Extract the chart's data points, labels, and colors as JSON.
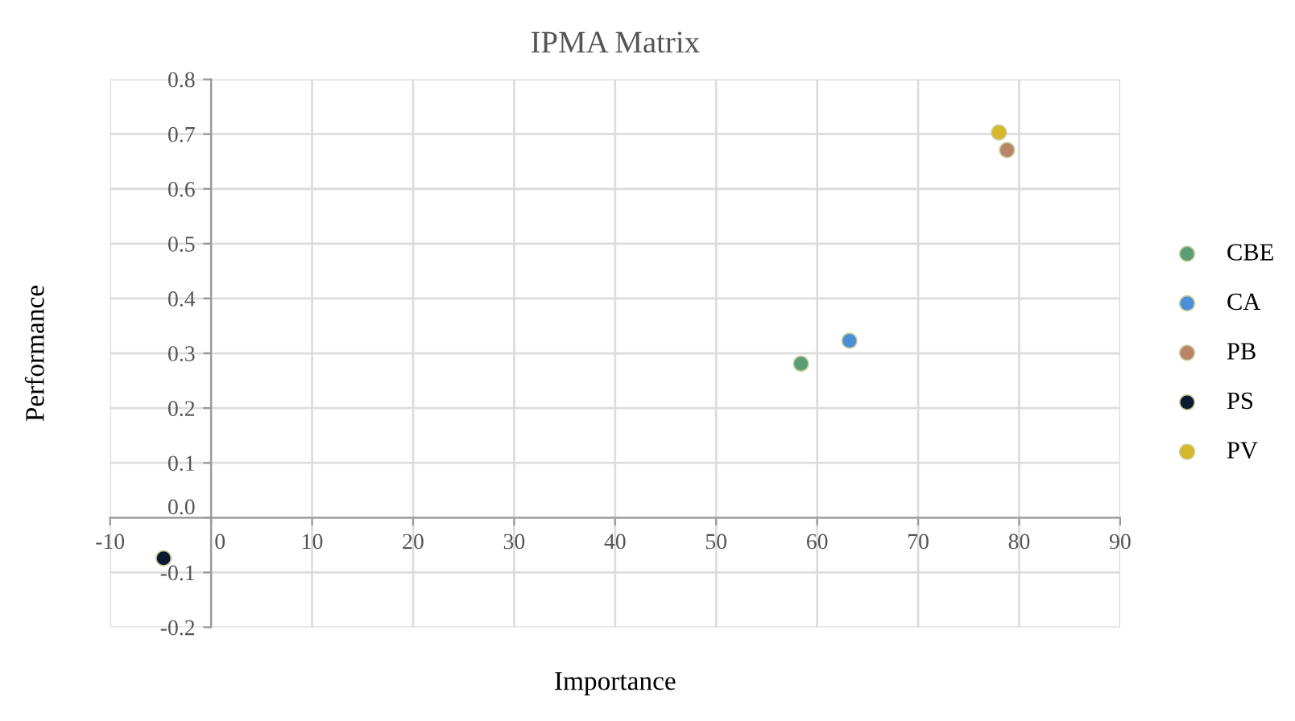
{
  "chart_data": {
    "type": "scatter",
    "title": "IPMA Matrix",
    "xlabel": "Importance",
    "ylabel": "Performance",
    "series": [
      {
        "name": "CBE",
        "color": "#5a9e78",
        "x": [
          58.4
        ],
        "values": [
          0.281
        ]
      },
      {
        "name": "CA",
        "color": "#4a90d9",
        "x": [
          63.2
        ],
        "values": [
          0.323
        ]
      },
      {
        "name": "PB",
        "color": "#b8856a",
        "x": [
          78.8
        ],
        "values": [
          0.671
        ]
      },
      {
        "name": "PS",
        "color": "#0a1a33",
        "x": [
          -4.7
        ],
        "values": [
          -0.074
        ]
      },
      {
        "name": "PV",
        "color": "#d4b82a",
        "x": [
          78.0
        ],
        "values": [
          0.703
        ]
      }
    ],
    "xlim": [
      -10,
      90
    ],
    "xticks": [
      -10,
      0,
      10,
      20,
      30,
      40,
      50,
      60,
      70,
      80,
      90
    ],
    "ylim": [
      -0.2,
      0.8
    ],
    "yticks": [
      -0.2,
      -0.1,
      {
        "value": 0,
        "label": "0.0"
      },
      0.1,
      0.2,
      0.3,
      0.4,
      0.5,
      0.6,
      0.7,
      0.8
    ],
    "grid": true,
    "legend": "right",
    "marker": "circle"
  }
}
